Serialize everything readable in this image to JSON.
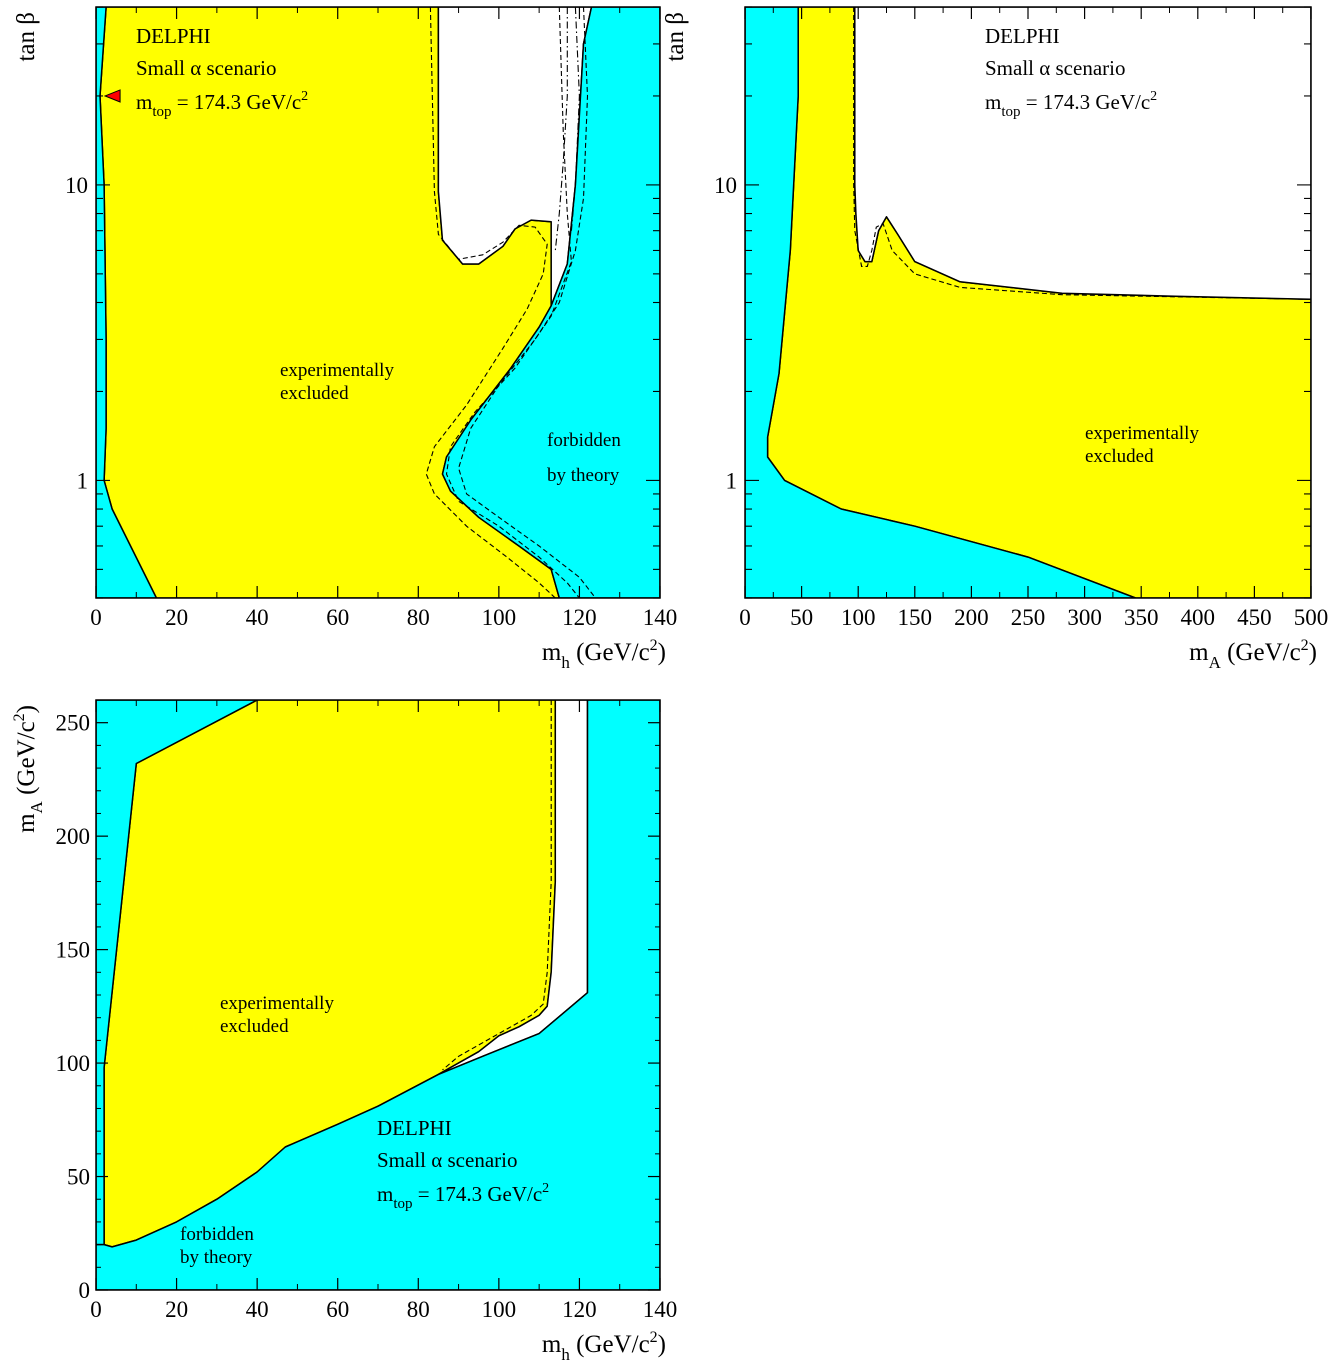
{
  "colors": {
    "excluded": "#ffff00",
    "forbidden": "#00ffff",
    "allowed": "#ffffff",
    "marker": "#ff0000",
    "frame": "#000000"
  },
  "chart_data": [
    {
      "type": "area",
      "panel": "tanbeta-vs-mh",
      "title": "",
      "xlabel": {
        "main": "m",
        "sub": "h",
        "unit": " (GeV/c",
        "sup": "2",
        "close": ")"
      },
      "ylabel": "tan β",
      "xlim": [
        0,
        140
      ],
      "ylim": [
        0.4,
        40
      ],
      "yscale": "log",
      "x_ticks": [
        "0",
        "20",
        "40",
        "60",
        "80",
        "100",
        "120",
        "140"
      ],
      "y_ticks": [
        "1",
        "10"
      ],
      "annotations": {
        "experiment": "DELPHI",
        "scenario": "Small α scenario",
        "mtop_main": "m",
        "mtop_sub": "top",
        "mtop_value": " = 174.3 GeV/c",
        "mtop_sup": "2",
        "excluded_line1": "experimentally",
        "excluded_line2": "excluded",
        "forbidden_line1": "forbidden",
        "forbidden_line2": "by theory"
      },
      "regions": {
        "excluded": [
          [
            2.5,
            40
          ],
          [
            1,
            20
          ],
          [
            2,
            10
          ],
          [
            2.5,
            3
          ],
          [
            2.5,
            1.5
          ],
          [
            2,
            1
          ],
          [
            4,
            0.8
          ],
          [
            15,
            0.4
          ],
          [
            115,
            0.4
          ],
          [
            113,
            0.5
          ],
          [
            105,
            0.6
          ],
          [
            95,
            0.75
          ],
          [
            88,
            0.92
          ],
          [
            86,
            1.05
          ],
          [
            87,
            1.2
          ],
          [
            93,
            1.6
          ],
          [
            103,
            2.4
          ],
          [
            110,
            3.3
          ],
          [
            113,
            3.9
          ],
          [
            113,
            7.5
          ],
          [
            108,
            7.6
          ],
          [
            104,
            7.1
          ],
          [
            101,
            6.2
          ],
          [
            95,
            5.4
          ],
          [
            91,
            5.4
          ],
          [
            86,
            6.5
          ],
          [
            85,
            9.5
          ],
          [
            85,
            40
          ]
        ],
        "white_allowed": [
          [
            85,
            40
          ],
          [
            85,
            9.5
          ],
          [
            86,
            6.5
          ],
          [
            91,
            5.4
          ],
          [
            95,
            5.4
          ],
          [
            101,
            6.2
          ],
          [
            104,
            7.1
          ],
          [
            108,
            7.6
          ],
          [
            113,
            7.5
          ],
          [
            113,
            3.9
          ],
          [
            117,
            5.4
          ],
          [
            119,
            10
          ],
          [
            121,
            30
          ],
          [
            123,
            40
          ]
        ],
        "forbidden_left": [
          [
            0,
            0.4
          ],
          [
            15,
            0.4
          ],
          [
            4,
            0.8
          ],
          [
            2,
            1
          ],
          [
            2.5,
            1.5
          ],
          [
            2.5,
            3
          ],
          [
            2,
            10
          ],
          [
            1,
            20
          ],
          [
            2.5,
            40
          ],
          [
            0,
            40
          ]
        ],
        "forbidden_right": [
          [
            123,
            40
          ],
          [
            121,
            30
          ],
          [
            119,
            10
          ],
          [
            117,
            5.4
          ],
          [
            113,
            3.9
          ],
          [
            110,
            3.3
          ],
          [
            103,
            2.4
          ],
          [
            93,
            1.6
          ],
          [
            87,
            1.2
          ],
          [
            86,
            1.05
          ],
          [
            88,
            0.92
          ],
          [
            95,
            0.75
          ],
          [
            105,
            0.6
          ],
          [
            113,
            0.5
          ],
          [
            115,
            0.4
          ],
          [
            140,
            0.4
          ],
          [
            140,
            40
          ]
        ]
      },
      "dashed_curves": [
        [
          [
            83,
            40
          ],
          [
            84,
            9.5
          ],
          [
            85,
            6.8
          ],
          [
            90,
            5.6
          ],
          [
            96,
            5.8
          ],
          [
            101,
            6.4
          ],
          [
            105,
            7.3
          ],
          [
            109,
            7.2
          ],
          [
            112,
            6.3
          ],
          [
            111,
            5
          ],
          [
            107,
            3.8
          ],
          [
            101,
            2.8
          ],
          [
            92,
            1.8
          ],
          [
            84,
            1.3
          ],
          [
            82,
            1.05
          ],
          [
            84,
            0.9
          ],
          [
            92,
            0.7
          ],
          [
            102,
            0.55
          ],
          [
            110,
            0.45
          ],
          [
            114,
            0.4
          ]
        ],
        [
          [
            115,
            40
          ],
          [
            116,
            15
          ],
          [
            117,
            8
          ],
          [
            118,
            5.5
          ],
          [
            113,
            3.6
          ],
          [
            104,
            2.4
          ],
          [
            94,
            1.7
          ],
          [
            88,
            1.3
          ],
          [
            87,
            1.05
          ],
          [
            90,
            0.85
          ],
          [
            100,
            0.7
          ],
          [
            110,
            0.55
          ],
          [
            117,
            0.45
          ],
          [
            120,
            0.4
          ]
        ],
        [
          [
            121,
            40
          ],
          [
            122,
            20
          ],
          [
            121,
            9
          ],
          [
            119,
            6
          ],
          [
            115,
            4
          ],
          [
            109,
            3
          ],
          [
            100,
            2.1
          ],
          [
            93,
            1.5
          ],
          [
            90,
            1.1
          ],
          [
            92,
            0.9
          ],
          [
            100,
            0.75
          ],
          [
            110,
            0.6
          ],
          [
            120,
            0.47
          ],
          [
            124,
            0.4
          ]
        ]
      ],
      "dashdot_curves": [
        [
          [
            117,
            40
          ],
          [
            117,
            30
          ],
          [
            117,
            20
          ],
          [
            116,
            12
          ],
          [
            115,
            8
          ],
          [
            114,
            6
          ]
        ],
        [
          [
            119,
            40
          ],
          [
            120,
            20
          ],
          [
            119,
            10
          ],
          [
            118,
            7
          ]
        ]
      ],
      "marker": {
        "x": 3,
        "y": 20
      }
    },
    {
      "type": "area",
      "panel": "tanbeta-vs-mA",
      "title": "",
      "xlabel": {
        "main": "m",
        "sub": "A",
        "unit": " (GeV/c",
        "sup": "2",
        "close": ")"
      },
      "ylabel": "tan β",
      "xlim": [
        0,
        500
      ],
      "ylim": [
        0.4,
        40
      ],
      "yscale": "log",
      "x_ticks": [
        "0",
        "50",
        "100",
        "150",
        "200",
        "250",
        "300",
        "350",
        "400",
        "450",
        "500"
      ],
      "y_ticks": [
        "1",
        "10"
      ],
      "annotations": {
        "experiment": "DELPHI",
        "scenario": "Small α scenario",
        "mtop_main": "m",
        "mtop_sub": "top",
        "mtop_value": " = 174.3 GeV/c",
        "mtop_sup": "2",
        "excluded_line1": "experimentally",
        "excluded_line2": "excluded"
      },
      "regions": {
        "excluded": [
          [
            47,
            40
          ],
          [
            47,
            20
          ],
          [
            40,
            6
          ],
          [
            30,
            2.3
          ],
          [
            20,
            1.4
          ],
          [
            20,
            1.2
          ],
          [
            35,
            1
          ],
          [
            85,
            0.8
          ],
          [
            150,
            0.7
          ],
          [
            250,
            0.55
          ],
          [
            345,
            0.4
          ],
          [
            500,
            0.4
          ],
          [
            500,
            4.1
          ],
          [
            380,
            4.2
          ],
          [
            280,
            4.3
          ],
          [
            190,
            4.7
          ],
          [
            150,
            5.5
          ],
          [
            135,
            6.8
          ],
          [
            125,
            7.8
          ],
          [
            118,
            7
          ],
          [
            112,
            5.5
          ],
          [
            106,
            5.5
          ],
          [
            100,
            6
          ],
          [
            98,
            8
          ],
          [
            97,
            10
          ],
          [
            97,
            40
          ]
        ],
        "white_allowed": [
          [
            97,
            40
          ],
          [
            97,
            10
          ],
          [
            98,
            8
          ],
          [
            100,
            6
          ],
          [
            106,
            5.5
          ],
          [
            112,
            5.5
          ],
          [
            118,
            7
          ],
          [
            125,
            7.8
          ],
          [
            135,
            6.8
          ],
          [
            150,
            5.5
          ],
          [
            190,
            4.7
          ],
          [
            280,
            4.3
          ],
          [
            380,
            4.2
          ],
          [
            500,
            4.1
          ],
          [
            500,
            40
          ]
        ],
        "forbidden": [
          [
            0,
            0.4
          ],
          [
            345,
            0.4
          ],
          [
            250,
            0.55
          ],
          [
            150,
            0.7
          ],
          [
            85,
            0.8
          ],
          [
            35,
            1
          ],
          [
            20,
            1.2
          ],
          [
            20,
            1.4
          ],
          [
            30,
            2.3
          ],
          [
            40,
            6
          ],
          [
            47,
            20
          ],
          [
            47,
            40
          ],
          [
            0,
            40
          ]
        ]
      },
      "dashed_curves": [
        [
          [
            96,
            40
          ],
          [
            96,
            10
          ],
          [
            97,
            7
          ],
          [
            103,
            5.3
          ],
          [
            108,
            5.3
          ],
          [
            112,
            6
          ],
          [
            116,
            7.2
          ],
          [
            122,
            7.4
          ],
          [
            130,
            6
          ],
          [
            150,
            5
          ],
          [
            190,
            4.5
          ],
          [
            280,
            4.25
          ],
          [
            500,
            4.1
          ]
        ]
      ],
      "dashdot_curves": [],
      "marker": null
    },
    {
      "type": "area",
      "panel": "mA-vs-mh",
      "title": "",
      "xlabel": {
        "main": "m",
        "sub": "h",
        "unit": " (GeV/c",
        "sup": "2",
        "close": ")"
      },
      "ylabel": {
        "main": "m",
        "sub": "A",
        "unit": " (GeV/c",
        "sup": "2",
        "close": ")"
      },
      "xlim": [
        0,
        140
      ],
      "ylim": [
        0,
        260
      ],
      "yscale": "linear",
      "x_ticks": [
        "0",
        "20",
        "40",
        "60",
        "80",
        "100",
        "120",
        "140"
      ],
      "y_ticks": [
        "0",
        "50",
        "100",
        "150",
        "200",
        "250"
      ],
      "annotations": {
        "experiment": "DELPHI",
        "scenario": "Small α scenario",
        "mtop_main": "m",
        "mtop_sub": "top",
        "mtop_value": " = 174.3 GeV/c",
        "mtop_sup": "2",
        "excluded_line1": "experimentally",
        "excluded_line2": "excluded",
        "forbidden_line1": "forbidden",
        "forbidden_line2": "by theory"
      },
      "regions": {
        "excluded": [
          [
            40,
            260
          ],
          [
            10,
            232
          ],
          [
            2,
            98
          ],
          [
            2,
            20
          ],
          [
            4,
            19
          ],
          [
            10,
            22
          ],
          [
            20,
            30
          ],
          [
            30,
            40
          ],
          [
            40,
            52
          ],
          [
            47,
            63
          ],
          [
            60,
            73
          ],
          [
            70,
            81
          ],
          [
            85,
            95
          ],
          [
            95,
            105
          ],
          [
            100,
            112
          ],
          [
            105,
            116
          ],
          [
            110,
            121
          ],
          [
            112,
            125
          ],
          [
            113,
            140
          ],
          [
            114,
            180
          ],
          [
            114,
            260
          ]
        ],
        "white_allowed": [
          [
            114,
            260
          ],
          [
            114,
            180
          ],
          [
            113,
            140
          ],
          [
            112,
            125
          ],
          [
            110,
            121
          ],
          [
            105,
            116
          ],
          [
            100,
            112
          ],
          [
            95,
            105
          ],
          [
            85,
            95
          ],
          [
            96,
            103
          ],
          [
            110,
            113
          ],
          [
            122,
            131
          ],
          [
            122,
            260
          ]
        ],
        "forbidden_topleft": [
          [
            0,
            260
          ],
          [
            40,
            260
          ],
          [
            10,
            232
          ],
          [
            2,
            98
          ],
          [
            2,
            20
          ],
          [
            0,
            20
          ]
        ],
        "forbidden_bottom": [
          [
            0,
            0
          ],
          [
            140,
            0
          ],
          [
            140,
            260
          ],
          [
            122,
            260
          ],
          [
            122,
            131
          ],
          [
            110,
            113
          ],
          [
            96,
            103
          ],
          [
            85,
            95
          ],
          [
            70,
            81
          ],
          [
            60,
            73
          ],
          [
            47,
            63
          ],
          [
            40,
            52
          ],
          [
            30,
            40
          ],
          [
            20,
            30
          ],
          [
            10,
            22
          ],
          [
            4,
            19
          ],
          [
            2,
            20
          ],
          [
            0,
            20
          ]
        ]
      },
      "dashed_curves": [
        [
          [
            113,
            260
          ],
          [
            113,
            180
          ],
          [
            112,
            140
          ],
          [
            111,
            126
          ],
          [
            108,
            121
          ],
          [
            103,
            116
          ],
          [
            97,
            110
          ],
          [
            90,
            103
          ],
          [
            86,
            97
          ]
        ]
      ],
      "dashdot_curves": [],
      "marker": null
    }
  ]
}
